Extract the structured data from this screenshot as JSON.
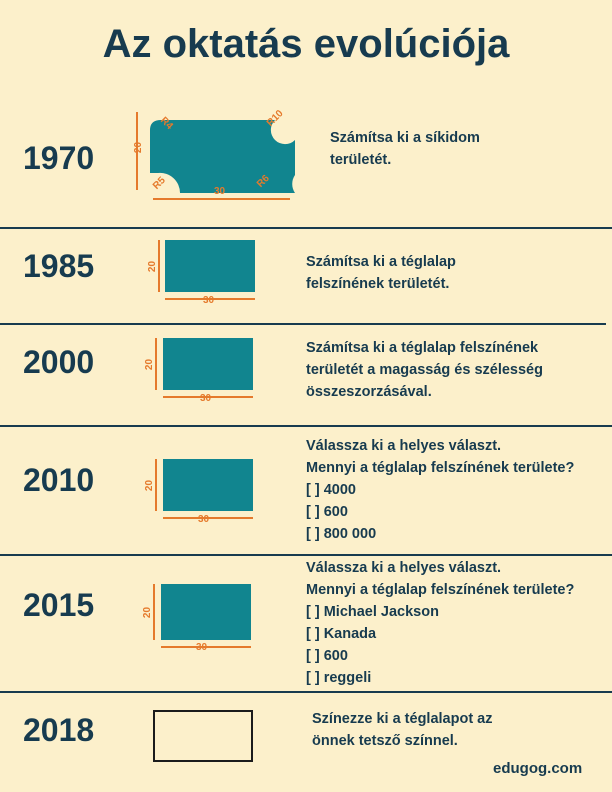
{
  "title": "Az oktatás evolúciója",
  "rows": [
    {
      "year": "1970",
      "dims": {
        "width": "30",
        "height": "20",
        "r1": "R4",
        "r2": "R10",
        "r3": "R5",
        "r4": "R6"
      },
      "lines": [
        "Számítsa ki a síkidom",
        "területét."
      ]
    },
    {
      "year": "1985",
      "dims": {
        "width": "30",
        "height": "20"
      },
      "lines": [
        "Számítsa ki a téglalap",
        "felszínének területét."
      ]
    },
    {
      "year": "2000",
      "dims": {
        "width": "30",
        "height": "20"
      },
      "lines": [
        "Számítsa ki a téglalap felszínének",
        "területét a magasság és szélesség",
        "összeszorzásával."
      ]
    },
    {
      "year": "2010",
      "dims": {
        "width": "30",
        "height": "20"
      },
      "lines": [
        "Válassza ki a helyes választ.",
        "Mennyi a téglalap felszínének területe?",
        "[  ] 4000",
        "[  ] 600",
        "[  ] 800 000"
      ]
    },
    {
      "year": "2015",
      "dims": {
        "width": "30",
        "height": "20"
      },
      "lines": [
        "Válassza ki a helyes választ.",
        "Mennyi a téglalap felszínének területe?",
        "[  ] Michael Jackson",
        "[  ] Kanada",
        "[  ] 600",
        "[  ] reggeli"
      ]
    },
    {
      "year": "2018",
      "lines": [
        "Színezze ki a téglalapot az",
        "önnek tetsző színnel."
      ]
    }
  ],
  "footer": "edugog.com",
  "colors": {
    "background": "#fcf0cb",
    "navy": "#173b4f",
    "teal": "#11858f",
    "orange": "#e57a2c"
  }
}
